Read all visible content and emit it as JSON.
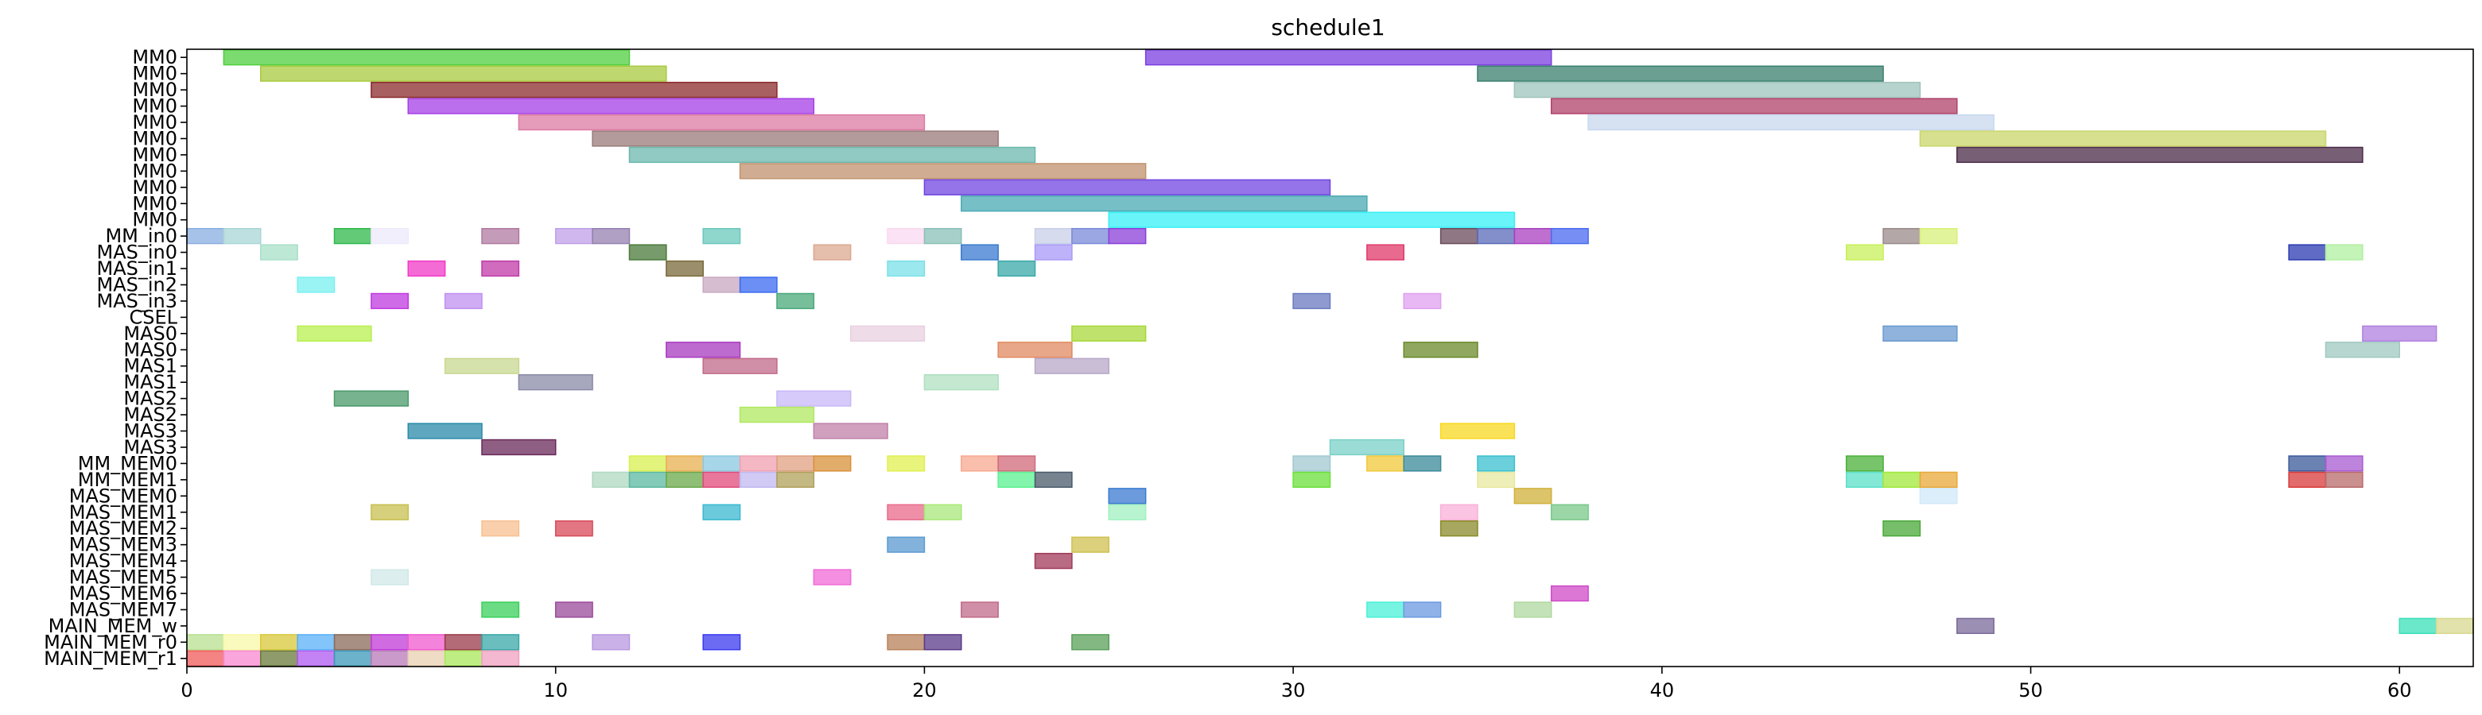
{
  "chart_data": {
    "type": "gantt",
    "title": "schedule1",
    "xlim": [
      0,
      62
    ],
    "x_ticks": [
      0,
      10,
      20,
      30,
      40,
      50,
      60
    ],
    "grid": false,
    "rows": [
      "MM0",
      "MM0",
      "MM0",
      "MM0",
      "MM0",
      "MM0",
      "MM0",
      "MM0",
      "MM0",
      "MM0",
      "MM0",
      "MM_in0",
      "MAS_in0",
      "MAS_in1",
      "MAS_in2",
      "MAS_in3",
      "CSEL",
      "MAS0",
      "MAS0",
      "MAS1",
      "MAS1",
      "MAS2",
      "MAS2",
      "MAS3",
      "MAS3",
      "MM_MEM0",
      "MM_MEM1",
      "MAS_MEM0",
      "MAS_MEM1",
      "MAS_MEM2",
      "MAS_MEM3",
      "MAS_MEM4",
      "MAS_MEM5",
      "MAS_MEM6",
      "MAS_MEM7",
      "MAIN_MEM_w",
      "MAIN_MEM_r0",
      "MAIN_MEM_r1"
    ],
    "tasks": [
      {
        "row": 0,
        "start": 1,
        "end": 12,
        "color": "#4fcf3f"
      },
      {
        "row": 0,
        "start": 26,
        "end": 37,
        "color": "#7b3fe0"
      },
      {
        "row": 1,
        "start": 2,
        "end": 13,
        "color": "#a9c93f"
      },
      {
        "row": 1,
        "start": 35,
        "end": 46,
        "color": "#3a7f6d"
      },
      {
        "row": 2,
        "start": 5,
        "end": 16,
        "color": "#8b2b2b"
      },
      {
        "row": 2,
        "start": 36,
        "end": 47,
        "color": "#9fc4bc"
      },
      {
        "row": 3,
        "start": 6,
        "end": 17,
        "color": "#a63fe6"
      },
      {
        "row": 3,
        "start": 37,
        "end": 48,
        "color": "#b0406a"
      },
      {
        "row": 4,
        "start": 9,
        "end": 20,
        "color": "#dc7aa3"
      },
      {
        "row": 4,
        "start": 38,
        "end": 49,
        "color": "#c8d8ee"
      },
      {
        "row": 5,
        "start": 11,
        "end": 22,
        "color": "#9a7a7a"
      },
      {
        "row": 5,
        "start": 47,
        "end": 58,
        "color": "#cad66a"
      },
      {
        "row": 6,
        "start": 12,
        "end": 23,
        "color": "#6bb8ad"
      },
      {
        "row": 6,
        "start": 48,
        "end": 59,
        "color": "#4a2a48"
      },
      {
        "row": 7,
        "start": 15,
        "end": 26,
        "color": "#c0926d"
      },
      {
        "row": 8,
        "start": 20,
        "end": 31,
        "color": "#7045e0"
      },
      {
        "row": 9,
        "start": 21,
        "end": 32,
        "color": "#4aa9b4"
      },
      {
        "row": 10,
        "start": 25,
        "end": 36,
        "color": "#36f0f5"
      },
      {
        "row": 11,
        "start": 0,
        "end": 1,
        "color": "#8aaee0"
      },
      {
        "row": 11,
        "start": 1,
        "end": 2,
        "color": "#a9d6d6"
      },
      {
        "row": 11,
        "start": 4,
        "end": 5,
        "color": "#2fb84a"
      },
      {
        "row": 11,
        "start": 5,
        "end": 6,
        "color": "#eeeafc"
      },
      {
        "row": 11,
        "start": 8,
        "end": 9,
        "color": "#b07aa0"
      },
      {
        "row": 11,
        "start": 10,
        "end": 11,
        "color": "#c0a0e8"
      },
      {
        "row": 11,
        "start": 11,
        "end": 12,
        "color": "#9580b0"
      },
      {
        "row": 11,
        "start": 14,
        "end": 15,
        "color": "#6ac8bc"
      },
      {
        "row": 11,
        "start": 19,
        "end": 20,
        "color": "#fad8f0"
      },
      {
        "row": 11,
        "start": 20,
        "end": 21,
        "color": "#8ac0b8"
      },
      {
        "row": 11,
        "start": 23,
        "end": 24,
        "color": "#c8d0e8"
      },
      {
        "row": 11,
        "start": 24,
        "end": 25,
        "color": "#7a8ad8"
      },
      {
        "row": 11,
        "start": 25,
        "end": 26,
        "color": "#8a3fd8"
      },
      {
        "row": 11,
        "start": 34,
        "end": 35,
        "color": "#6a4a5a"
      },
      {
        "row": 11,
        "start": 35,
        "end": 36,
        "color": "#5a6ab8"
      },
      {
        "row": 11,
        "start": 36,
        "end": 37,
        "color": "#a83fc0"
      },
      {
        "row": 11,
        "start": 37,
        "end": 38,
        "color": "#4a6af0"
      },
      {
        "row": 11,
        "start": 46,
        "end": 47,
        "color": "#9a8a8a"
      },
      {
        "row": 11,
        "start": 47,
        "end": 48,
        "color": "#d8f07a"
      },
      {
        "row": 12,
        "start": 2,
        "end": 3,
        "color": "#a8e0c8"
      },
      {
        "row": 12,
        "start": 12,
        "end": 13,
        "color": "#4a7a3a"
      },
      {
        "row": 12,
        "start": 17,
        "end": 18,
        "color": "#dca890"
      },
      {
        "row": 12,
        "start": 21,
        "end": 22,
        "color": "#3a7ad0"
      },
      {
        "row": 12,
        "start": 23,
        "end": 24,
        "color": "#a89af8"
      },
      {
        "row": 12,
        "start": 32,
        "end": 33,
        "color": "#e03a6a"
      },
      {
        "row": 12,
        "start": 45,
        "end": 46,
        "color": "#c8f05a"
      },
      {
        "row": 12,
        "start": 57,
        "end": 58,
        "color": "#2a3ab0"
      },
      {
        "row": 12,
        "start": 58,
        "end": 59,
        "color": "#b0f0a0"
      },
      {
        "row": 13,
        "start": 6,
        "end": 7,
        "color": "#f03ac8"
      },
      {
        "row": 13,
        "start": 8,
        "end": 9,
        "color": "#c03aa8"
      },
      {
        "row": 13,
        "start": 13,
        "end": 14,
        "color": "#7a6a3a"
      },
      {
        "row": 13,
        "start": 19,
        "end": 20,
        "color": "#7ae0e8"
      },
      {
        "row": 13,
        "start": 22,
        "end": 23,
        "color": "#3aa8a8"
      },
      {
        "row": 14,
        "start": 3,
        "end": 4,
        "color": "#7af0f0"
      },
      {
        "row": 14,
        "start": 14,
        "end": 15,
        "color": "#c8a8c0"
      },
      {
        "row": 14,
        "start": 15,
        "end": 16,
        "color": "#3a6af0"
      },
      {
        "row": 15,
        "start": 5,
        "end": 6,
        "color": "#c03ae0"
      },
      {
        "row": 15,
        "start": 7,
        "end": 8,
        "color": "#c090f0"
      },
      {
        "row": 15,
        "start": 16,
        "end": 17,
        "color": "#4aa87a"
      },
      {
        "row": 15,
        "start": 30,
        "end": 31,
        "color": "#6a7ac0"
      },
      {
        "row": 15,
        "start": 33,
        "end": 34,
        "color": "#e0a0f0"
      },
      {
        "row": 17,
        "start": 3,
        "end": 5,
        "color": "#b8f050"
      },
      {
        "row": 17,
        "start": 18,
        "end": 20,
        "color": "#e8d0e0"
      },
      {
        "row": 17,
        "start": 24,
        "end": 26,
        "color": "#a8d83a"
      },
      {
        "row": 17,
        "start": 46,
        "end": 48,
        "color": "#6a9ad0"
      },
      {
        "row": 17,
        "start": 59,
        "end": 61,
        "color": "#b080e0"
      },
      {
        "row": 18,
        "start": 13,
        "end": 15,
        "color": "#a83ac0"
      },
      {
        "row": 18,
        "start": 22,
        "end": 24,
        "color": "#e08a60"
      },
      {
        "row": 18,
        "start": 33,
        "end": 35,
        "color": "#6a8a2a"
      },
      {
        "row": 18,
        "start": 58,
        "end": 60,
        "color": "#a0c8c0"
      },
      {
        "row": 19,
        "start": 7,
        "end": 9,
        "color": "#c8d890"
      },
      {
        "row": 19,
        "start": 14,
        "end": 16,
        "color": "#c06a8a"
      },
      {
        "row": 19,
        "start": 23,
        "end": 25,
        "color": "#b8a8c8"
      },
      {
        "row": 20,
        "start": 9,
        "end": 11,
        "color": "#8a8aa8"
      },
      {
        "row": 20,
        "start": 20,
        "end": 22,
        "color": "#b0e0c0"
      },
      {
        "row": 21,
        "start": 4,
        "end": 6,
        "color": "#4a9a6a"
      },
      {
        "row": 21,
        "start": 16,
        "end": 18,
        "color": "#c8b8f8"
      },
      {
        "row": 22,
        "start": 15,
        "end": 17,
        "color": "#b0e860"
      },
      {
        "row": 23,
        "start": 6,
        "end": 8,
        "color": "#2a8aa8"
      },
      {
        "row": 23,
        "start": 17,
        "end": 19,
        "color": "#c080a8"
      },
      {
        "row": 23,
        "start": 34,
        "end": 36,
        "color": "#f8d820"
      },
      {
        "row": 24,
        "start": 8,
        "end": 10,
        "color": "#6a2a5a"
      },
      {
        "row": 24,
        "start": 31,
        "end": 33,
        "color": "#7ad0c8"
      },
      {
        "row": 25,
        "start": 12,
        "end": 13,
        "color": "#d8f050"
      },
      {
        "row": 25,
        "start": 13,
        "end": 14,
        "color": "#e8b050"
      },
      {
        "row": 25,
        "start": 14,
        "end": 15,
        "color": "#8ac8e0"
      },
      {
        "row": 25,
        "start": 15,
        "end": 16,
        "color": "#f0a0b0"
      },
      {
        "row": 25,
        "start": 16,
        "end": 17,
        "color": "#e0a080"
      },
      {
        "row": 25,
        "start": 17,
        "end": 18,
        "color": "#d8903a"
      },
      {
        "row": 25,
        "start": 19,
        "end": 20,
        "color": "#e0f050"
      },
      {
        "row": 25,
        "start": 21,
        "end": 22,
        "color": "#f8a890"
      },
      {
        "row": 25,
        "start": 22,
        "end": 23,
        "color": "#d06a7a"
      },
      {
        "row": 25,
        "start": 30,
        "end": 31,
        "color": "#a0c8d0"
      },
      {
        "row": 25,
        "start": 32,
        "end": 33,
        "color": "#f0c83a"
      },
      {
        "row": 25,
        "start": 33,
        "end": 34,
        "color": "#3a8a9a"
      },
      {
        "row": 25,
        "start": 35,
        "end": 36,
        "color": "#3ac0d0"
      },
      {
        "row": 25,
        "start": 45,
        "end": 46,
        "color": "#4ab03a"
      },
      {
        "row": 25,
        "start": 57,
        "end": 58,
        "color": "#3a5a9a"
      },
      {
        "row": 25,
        "start": 58,
        "end": 59,
        "color": "#a85ad0"
      },
      {
        "row": 26,
        "start": 11,
        "end": 12,
        "color": "#b0d8c0"
      },
      {
        "row": 26,
        "start": 12,
        "end": 13,
        "color": "#5ab8a0"
      },
      {
        "row": 26,
        "start": 13,
        "end": 14,
        "color": "#6aa84a"
      },
      {
        "row": 26,
        "start": 14,
        "end": 15,
        "color": "#e04a7a"
      },
      {
        "row": 26,
        "start": 15,
        "end": 16,
        "color": "#c0b8f0"
      },
      {
        "row": 26,
        "start": 16,
        "end": 17,
        "color": "#b0a05a"
      },
      {
        "row": 26,
        "start": 22,
        "end": 23,
        "color": "#5af090"
      },
      {
        "row": 26,
        "start": 23,
        "end": 24,
        "color": "#4a5a6a"
      },
      {
        "row": 26,
        "start": 30,
        "end": 31,
        "color": "#6ae03a"
      },
      {
        "row": 26,
        "start": 35,
        "end": 36,
        "color": "#e8e8a0"
      },
      {
        "row": 26,
        "start": 45,
        "end": 46,
        "color": "#5ae0c8"
      },
      {
        "row": 26,
        "start": 46,
        "end": 47,
        "color": "#a0e83a"
      },
      {
        "row": 26,
        "start": 47,
        "end": 48,
        "color": "#e8a83a"
      },
      {
        "row": 26,
        "start": 57,
        "end": 58,
        "color": "#d83a3a"
      },
      {
        "row": 26,
        "start": 58,
        "end": 59,
        "color": "#b86a6a"
      },
      {
        "row": 27,
        "start": 25,
        "end": 26,
        "color": "#3a7ad0"
      },
      {
        "row": 27,
        "start": 36,
        "end": 37,
        "color": "#d0b03a"
      },
      {
        "row": 27,
        "start": 47,
        "end": 48,
        "color": "#d0e8f8"
      },
      {
        "row": 28,
        "start": 5,
        "end": 6,
        "color": "#c8c050"
      },
      {
        "row": 28,
        "start": 14,
        "end": 15,
        "color": "#3ab8d0"
      },
      {
        "row": 28,
        "start": 19,
        "end": 20,
        "color": "#e86a8a"
      },
      {
        "row": 28,
        "start": 20,
        "end": 21,
        "color": "#a8e87a"
      },
      {
        "row": 28,
        "start": 25,
        "end": 26,
        "color": "#a0f0c0"
      },
      {
        "row": 28,
        "start": 34,
        "end": 35,
        "color": "#f8b0d8"
      },
      {
        "row": 28,
        "start": 37,
        "end": 38,
        "color": "#7ac88a"
      },
      {
        "row": 29,
        "start": 8,
        "end": 9,
        "color": "#f8c090"
      },
      {
        "row": 29,
        "start": 10,
        "end": 11,
        "color": "#d84a5a"
      },
      {
        "row": 29,
        "start": 34,
        "end": 35,
        "color": "#8a8a2a"
      },
      {
        "row": 29,
        "start": 46,
        "end": 47,
        "color": "#4aa83a"
      },
      {
        "row": 30,
        "start": 19,
        "end": 20,
        "color": "#5a9ad0"
      },
      {
        "row": 30,
        "start": 24,
        "end": 25,
        "color": "#d0c050"
      },
      {
        "row": 31,
        "start": 23,
        "end": 24,
        "color": "#a03a5a"
      },
      {
        "row": 32,
        "start": 5,
        "end": 6,
        "color": "#d0e8e8"
      },
      {
        "row": 32,
        "start": 17,
        "end": 18,
        "color": "#f06ad8"
      },
      {
        "row": 33,
        "start": 37,
        "end": 38,
        "color": "#d04ac8"
      },
      {
        "row": 34,
        "start": 8,
        "end": 9,
        "color": "#3ad05a"
      },
      {
        "row": 34,
        "start": 10,
        "end": 11,
        "color": "#9a4a9a"
      },
      {
        "row": 34,
        "start": 21,
        "end": 22,
        "color": "#c06a8a"
      },
      {
        "row": 34,
        "start": 32,
        "end": 33,
        "color": "#4af0d8"
      },
      {
        "row": 34,
        "start": 33,
        "end": 34,
        "color": "#6a9ae0"
      },
      {
        "row": 34,
        "start": 36,
        "end": 37,
        "color": "#b0d8a0"
      },
      {
        "row": 35,
        "start": 48,
        "end": 49,
        "color": "#7a6a9a"
      },
      {
        "row": 35,
        "start": 60,
        "end": 61,
        "color": "#3ae0b8"
      },
      {
        "row": 35,
        "start": 61,
        "end": 62,
        "color": "#d8d890"
      },
      {
        "row": 36,
        "start": 0,
        "end": 1,
        "color": "#b8e090"
      },
      {
        "row": 36,
        "start": 1,
        "end": 2,
        "color": "#f8f8a8"
      },
      {
        "row": 36,
        "start": 2,
        "end": 3,
        "color": "#d8c83a"
      },
      {
        "row": 36,
        "start": 3,
        "end": 4,
        "color": "#5ab0f8"
      },
      {
        "row": 36,
        "start": 4,
        "end": 5,
        "color": "#8a6a5a"
      },
      {
        "row": 36,
        "start": 5,
        "end": 6,
        "color": "#c03ad8"
      },
      {
        "row": 36,
        "start": 6,
        "end": 7,
        "color": "#f05ad0"
      },
      {
        "row": 36,
        "start": 7,
        "end": 8,
        "color": "#9a3a4a"
      },
      {
        "row": 36,
        "start": 8,
        "end": 9,
        "color": "#3aa8a8"
      },
      {
        "row": 36,
        "start": 11,
        "end": 12,
        "color": "#b898e0"
      },
      {
        "row": 36,
        "start": 14,
        "end": 15,
        "color": "#3a3af0"
      },
      {
        "row": 36,
        "start": 19,
        "end": 20,
        "color": "#b8805a"
      },
      {
        "row": 36,
        "start": 20,
        "end": 21,
        "color": "#5a3a8a"
      },
      {
        "row": 36,
        "start": 24,
        "end": 25,
        "color": "#5aa05a"
      },
      {
        "row": 37,
        "start": 0,
        "end": 1,
        "color": "#f05a5a"
      },
      {
        "row": 37,
        "start": 1,
        "end": 2,
        "color": "#f888d0"
      },
      {
        "row": 37,
        "start": 2,
        "end": 3,
        "color": "#6a7a3a"
      },
      {
        "row": 37,
        "start": 3,
        "end": 4,
        "color": "#b05af0"
      },
      {
        "row": 37,
        "start": 4,
        "end": 5,
        "color": "#3a98b8"
      },
      {
        "row": 37,
        "start": 5,
        "end": 6,
        "color": "#b87ab8"
      },
      {
        "row": 37,
        "start": 6,
        "end": 7,
        "color": "#e8d0b0"
      },
      {
        "row": 37,
        "start": 7,
        "end": 8,
        "color": "#a8e85a"
      },
      {
        "row": 37,
        "start": 8,
        "end": 9,
        "color": "#f0a0c0"
      }
    ]
  }
}
